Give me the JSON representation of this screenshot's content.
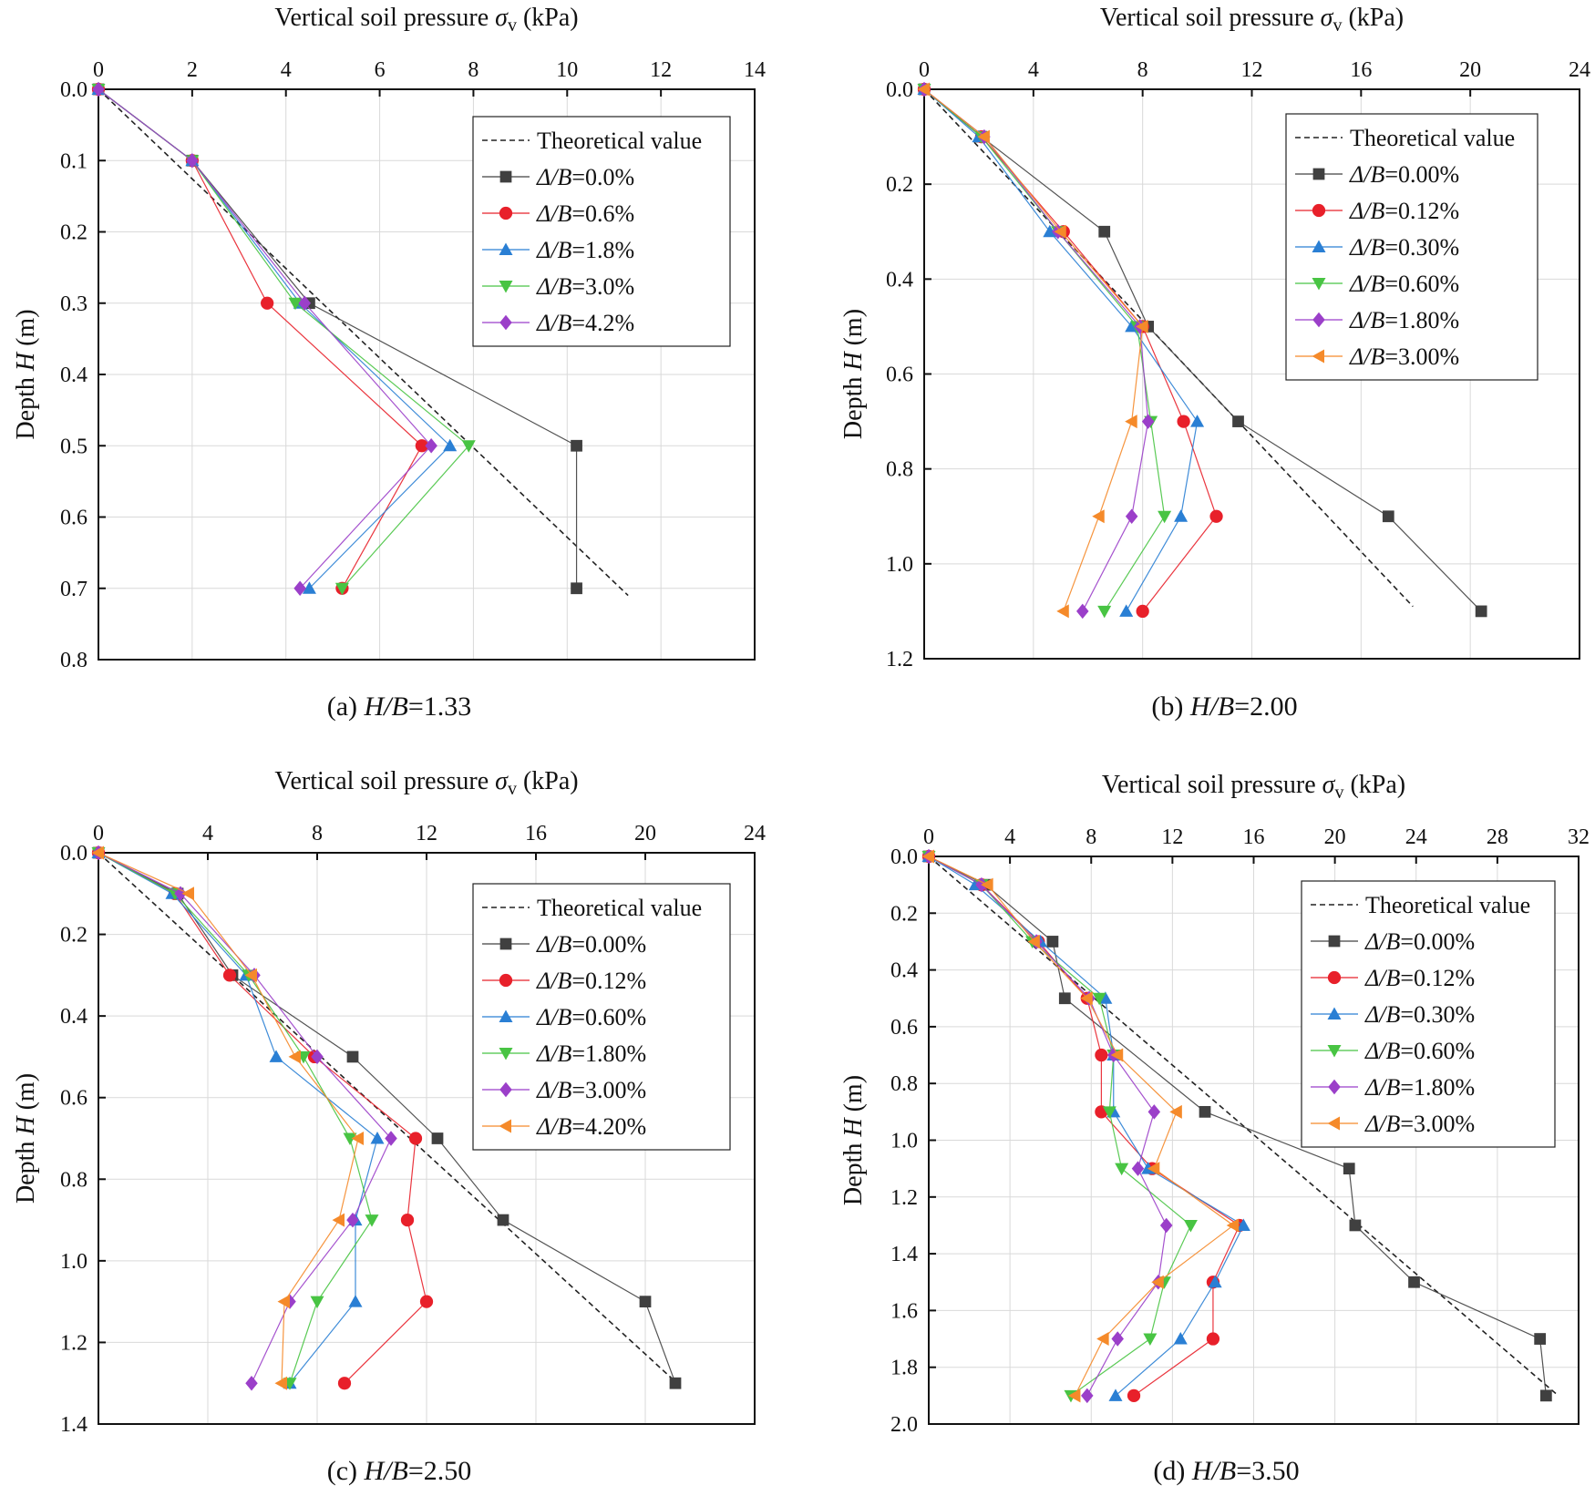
{
  "chart_data": [
    {
      "type": "line",
      "caption": "(a) H/B=1.33",
      "xlabel": "Vertical soil pressure σv (kPa)",
      "ylabel": "Depth H (m)",
      "xlim": [
        0,
        14
      ],
      "ylim": [
        0,
        0.8
      ],
      "xticks": [
        "0",
        "2",
        "4",
        "6",
        "8",
        "10",
        "12",
        "14"
      ],
      "yticks": [
        "0.0",
        "0.1",
        "0.2",
        "0.3",
        "0.4",
        "0.5",
        "0.6",
        "0.7",
        "0.8"
      ],
      "y_inverted": true,
      "x_axis_position": "top",
      "legend_position": "top-right",
      "theoretical": {
        "name": "Theoretical value",
        "x": [
          0,
          11.3
        ],
        "y": [
          0,
          0.71
        ]
      },
      "series": [
        {
          "name": "Δ/B=0.0%",
          "marker": "square",
          "color": "#404040",
          "x": [
            0,
            2.0,
            4.5,
            10.2,
            10.2
          ],
          "y": [
            0,
            0.1,
            0.3,
            0.5,
            0.7
          ]
        },
        {
          "name": "Δ/B=0.6%",
          "marker": "circle",
          "color": "#e8202a",
          "x": [
            0,
            2.0,
            3.6,
            6.9,
            5.2
          ],
          "y": [
            0,
            0.1,
            0.3,
            0.5,
            0.7
          ]
        },
        {
          "name": "Δ/B=1.8%",
          "marker": "triangle-up",
          "color": "#2a7fd4",
          "x": [
            0,
            2.0,
            4.3,
            7.5,
            4.5
          ],
          "y": [
            0,
            0.1,
            0.3,
            0.5,
            0.7
          ]
        },
        {
          "name": "Δ/B=3.0%",
          "marker": "triangle-down",
          "color": "#48c443",
          "x": [
            0,
            2.0,
            4.2,
            7.9,
            5.2
          ],
          "y": [
            0,
            0.1,
            0.3,
            0.5,
            0.7
          ]
        },
        {
          "name": "Δ/B=4.2%",
          "marker": "diamond",
          "color": "#9b3fc9",
          "x": [
            0,
            2.0,
            4.4,
            7.1,
            4.3
          ],
          "y": [
            0,
            0.1,
            0.3,
            0.5,
            0.7
          ]
        }
      ]
    },
    {
      "type": "line",
      "caption": "(b) H/B=2.00",
      "xlabel": "Vertical soil pressure σv (kPa)",
      "ylabel": "Depth H (m)",
      "xlim": [
        0,
        24
      ],
      "ylim": [
        0,
        1.2
      ],
      "xticks": [
        "0",
        "4",
        "8",
        "12",
        "16",
        "20",
        "24"
      ],
      "yticks": [
        "0.0",
        "0.2",
        "0.4",
        "0.6",
        "0.8",
        "1.0",
        "1.2"
      ],
      "y_inverted": true,
      "x_axis_position": "top",
      "legend_position": "top-right",
      "theoretical": {
        "name": "Theoretical value",
        "x": [
          0,
          17.9
        ],
        "y": [
          0,
          1.09
        ]
      },
      "series": [
        {
          "name": "Δ/B=0.00%",
          "marker": "square",
          "color": "#404040",
          "x": [
            0,
            2.1,
            6.6,
            8.2,
            11.5,
            17.0,
            20.4
          ],
          "y": [
            0,
            0.1,
            0.3,
            0.5,
            0.7,
            0.9,
            1.1
          ]
        },
        {
          "name": "Δ/B=0.12%",
          "marker": "circle",
          "color": "#e8202a",
          "x": [
            0,
            2.1,
            5.1,
            8.0,
            9.5,
            10.7,
            8.0
          ],
          "y": [
            0,
            0.1,
            0.3,
            0.5,
            0.7,
            0.9,
            1.1
          ]
        },
        {
          "name": "Δ/B=0.30%",
          "marker": "triangle-up",
          "color": "#2a7fd4",
          "x": [
            0,
            2.0,
            4.6,
            7.6,
            10.0,
            9.4,
            7.4
          ],
          "y": [
            0,
            0.1,
            0.3,
            0.5,
            0.7,
            0.9,
            1.1
          ]
        },
        {
          "name": "Δ/B=0.60%",
          "marker": "triangle-down",
          "color": "#48c443",
          "x": [
            0,
            2.1,
            4.9,
            7.8,
            8.3,
            8.8,
            6.6
          ],
          "y": [
            0,
            0.1,
            0.3,
            0.5,
            0.7,
            0.9,
            1.1
          ]
        },
        {
          "name": "Δ/B=1.80%",
          "marker": "diamond",
          "color": "#9b3fc9",
          "x": [
            0,
            2.2,
            4.9,
            7.9,
            8.2,
            7.6,
            5.8
          ],
          "y": [
            0,
            0.1,
            0.3,
            0.5,
            0.7,
            0.9,
            1.1
          ]
        },
        {
          "name": "Δ/B=3.00%",
          "marker": "triangle-left",
          "color": "#f58a2a",
          "x": [
            0,
            2.2,
            5.0,
            8.0,
            7.6,
            6.4,
            5.1
          ],
          "y": [
            0,
            0.1,
            0.3,
            0.5,
            0.7,
            0.9,
            1.1
          ]
        }
      ]
    },
    {
      "type": "line",
      "caption": "(c) H/B=2.50",
      "xlabel": "Vertical soil pressure σv (kPa)",
      "ylabel": "Depth H (m)",
      "xlim": [
        0,
        24
      ],
      "ylim": [
        0,
        1.4
      ],
      "xticks": [
        "0",
        "4",
        "8",
        "12",
        "16",
        "20",
        "24"
      ],
      "yticks": [
        "0.0",
        "0.2",
        "0.4",
        "0.6",
        "0.8",
        "1.0",
        "1.2",
        "1.4"
      ],
      "y_inverted": true,
      "x_axis_position": "top",
      "legend_position": "top-right",
      "theoretical": {
        "name": "Theoretical value",
        "x": [
          0,
          21.0
        ],
        "y": [
          0,
          1.29
        ]
      },
      "series": [
        {
          "name": "Δ/B=0.00%",
          "marker": "square",
          "color": "#404040",
          "x": [
            0,
            2.9,
            4.9,
            9.3,
            12.4,
            14.8,
            20.0,
            21.1
          ],
          "y": [
            0,
            0.1,
            0.3,
            0.5,
            0.7,
            0.9,
            1.1,
            1.3
          ]
        },
        {
          "name": "Δ/B=0.12%",
          "marker": "circle",
          "color": "#e8202a",
          "x": [
            0,
            2.8,
            4.8,
            7.9,
            11.6,
            11.3,
            12.0,
            9.0
          ],
          "y": [
            0,
            0.1,
            0.3,
            0.5,
            0.7,
            0.9,
            1.1,
            1.3
          ]
        },
        {
          "name": "Δ/B=0.60%",
          "marker": "triangle-up",
          "color": "#2a7fd4",
          "x": [
            0,
            2.7,
            5.4,
            6.5,
            10.2,
            9.4,
            9.4,
            7.0
          ],
          "y": [
            0,
            0.1,
            0.3,
            0.5,
            0.7,
            0.9,
            1.1,
            1.3
          ]
        },
        {
          "name": "Δ/B=1.80%",
          "marker": "triangle-down",
          "color": "#48c443",
          "x": [
            0,
            2.8,
            5.5,
            7.5,
            9.2,
            10.0,
            8.0,
            7.0
          ],
          "y": [
            0,
            0.1,
            0.3,
            0.5,
            0.7,
            0.9,
            1.1,
            1.3
          ]
        },
        {
          "name": "Δ/B=3.00%",
          "marker": "diamond",
          "color": "#9b3fc9",
          "x": [
            0,
            3.0,
            5.7,
            8.0,
            10.7,
            9.3,
            7.0,
            5.6
          ],
          "y": [
            0,
            0.1,
            0.3,
            0.5,
            0.7,
            0.9,
            1.1,
            1.3
          ]
        },
        {
          "name": "Δ/B=4.20%",
          "marker": "triangle-left",
          "color": "#f58a2a",
          "x": [
            0,
            3.3,
            5.6,
            7.2,
            9.5,
            8.8,
            6.8,
            6.7
          ],
          "y": [
            0,
            0.1,
            0.3,
            0.5,
            0.7,
            0.9,
            1.1,
            1.3
          ]
        }
      ]
    },
    {
      "type": "line",
      "caption": "(d) H/B=3.50",
      "xlabel": "Vertical soil pressure σv (kPa)",
      "ylabel": "Depth H (m)",
      "xlim": [
        0,
        32
      ],
      "ylim": [
        0,
        2.0
      ],
      "xticks": [
        "0",
        "4",
        "8",
        "12",
        "16",
        "20",
        "24",
        "28",
        "32"
      ],
      "yticks": [
        "0.0",
        "0.2",
        "0.4",
        "0.6",
        "0.8",
        "1.0",
        "1.2",
        "1.4",
        "1.6",
        "1.8",
        "2.0"
      ],
      "y_inverted": true,
      "x_axis_position": "top",
      "legend_position": "top-right",
      "theoretical": {
        "name": "Theoretical value",
        "x": [
          0,
          31.0
        ],
        "y": [
          0,
          1.9
        ]
      },
      "series": [
        {
          "name": "Δ/B=0.00%",
          "marker": "square",
          "color": "#404040",
          "x": [
            0,
            2.8,
            6.1,
            6.7,
            13.6,
            20.7,
            21.0,
            23.9,
            30.1,
            30.4
          ],
          "y": [
            0,
            0.1,
            0.3,
            0.5,
            0.9,
            1.1,
            1.3,
            1.5,
            1.7,
            1.9
          ]
        },
        {
          "name": "Δ/B=0.12%",
          "marker": "circle",
          "color": "#e8202a",
          "x": [
            0,
            2.6,
            5.4,
            7.8,
            8.5,
            8.5,
            11.0,
            15.3,
            14.0,
            14.0,
            10.1
          ],
          "y": [
            0,
            0.1,
            0.3,
            0.5,
            0.7,
            0.9,
            1.1,
            1.3,
            1.5,
            1.7,
            1.9
          ]
        },
        {
          "name": "Δ/B=0.30%",
          "marker": "triangle-up",
          "color": "#2a7fd4",
          "x": [
            0,
            2.3,
            5.5,
            8.7,
            9.1,
            9.1,
            10.8,
            15.5,
            14.1,
            12.4,
            9.2
          ],
          "y": [
            0,
            0.1,
            0.3,
            0.5,
            0.7,
            0.9,
            1.1,
            1.3,
            1.5,
            1.7,
            1.9
          ]
        },
        {
          "name": "Δ/B=0.60%",
          "marker": "triangle-down",
          "color": "#48c443",
          "x": [
            0,
            2.6,
            5.1,
            8.4,
            9.1,
            8.9,
            9.5,
            12.9,
            11.6,
            10.9,
            7.0
          ],
          "y": [
            0,
            0.1,
            0.3,
            0.5,
            0.7,
            0.9,
            1.1,
            1.3,
            1.5,
            1.7,
            1.9
          ]
        },
        {
          "name": "Δ/B=1.80%",
          "marker": "diamond",
          "color": "#9b3fc9",
          "x": [
            0,
            2.6,
            5.3,
            7.9,
            9.1,
            11.1,
            10.3,
            11.7,
            11.3,
            9.3,
            7.8
          ],
          "y": [
            0,
            0.1,
            0.3,
            0.5,
            0.7,
            0.9,
            1.1,
            1.3,
            1.5,
            1.7,
            1.9
          ]
        },
        {
          "name": "Δ/B=3.00%",
          "marker": "triangle-left",
          "color": "#f58a2a",
          "x": [
            0,
            2.9,
            5.2,
            7.8,
            9.3,
            12.2,
            11.1,
            15.0,
            11.3,
            8.6,
            7.2
          ],
          "y": [
            0,
            0.1,
            0.3,
            0.5,
            0.7,
            0.9,
            1.1,
            1.3,
            1.5,
            1.7,
            1.9
          ]
        }
      ]
    }
  ]
}
